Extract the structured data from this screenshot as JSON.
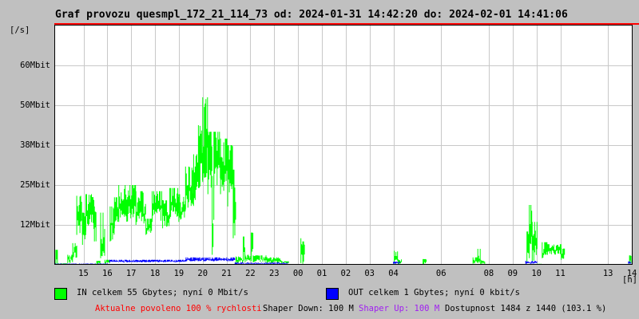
{
  "title": "Graf provozu quesmpl_172_21_114_73 od: 2024-01-31 14:42:20 do: 2024-02-01 14:41:06",
  "colors": {
    "background": "#c0c0c0",
    "plot_background": "#ffffff",
    "grid": "#c8c8c8",
    "frame": "#000000",
    "max_line": "#ff0000",
    "in_series": "#00ff00",
    "out_series": "#0000ff",
    "allowed_text": "#ff0000",
    "shaper_up_text": "#a020f0",
    "text": "#000000"
  },
  "y_axis": {
    "unit_label": "[/s]",
    "ticks": [
      {
        "value": 12,
        "label": "12Mbit"
      },
      {
        "value": 25,
        "label": "25Mbit"
      },
      {
        "value": 38,
        "label": "38Mbit"
      },
      {
        "value": 50,
        "label": "50Mbit"
      },
      {
        "value": 60,
        "label": "60Mbit"
      }
    ]
  },
  "x_axis": {
    "unit_label": "[h]",
    "note": "t is hours since day-1 00:00; 24+ means next day. Labels/gridlines for 05, 07 and 12 h are absent in the source image.",
    "ticks": [
      {
        "t": 15,
        "label": "15",
        "grid": true
      },
      {
        "t": 16,
        "label": "16",
        "grid": true
      },
      {
        "t": 17,
        "label": "17",
        "grid": true
      },
      {
        "t": 18,
        "label": "18",
        "grid": true
      },
      {
        "t": 19,
        "label": "19",
        "grid": true
      },
      {
        "t": 20,
        "label": "20",
        "grid": true
      },
      {
        "t": 21,
        "label": "21",
        "grid": true
      },
      {
        "t": 22,
        "label": "22",
        "grid": true
      },
      {
        "t": 23,
        "label": "23",
        "grid": true
      },
      {
        "t": 24,
        "label": "00",
        "grid": true
      },
      {
        "t": 25,
        "label": "01",
        "grid": true
      },
      {
        "t": 26,
        "label": "02",
        "grid": true
      },
      {
        "t": 27,
        "label": "03",
        "grid": true
      },
      {
        "t": 28,
        "label": "04",
        "grid": true
      },
      {
        "t": 30,
        "label": "06",
        "grid": true
      },
      {
        "t": 32,
        "label": "08",
        "grid": true
      },
      {
        "t": 33,
        "label": "09",
        "grid": true
      },
      {
        "t": 34,
        "label": "10",
        "grid": true
      },
      {
        "t": 35,
        "label": "11",
        "grid": true
      },
      {
        "t": 37,
        "label": "13",
        "grid": true
      },
      {
        "t": 38,
        "label": "14",
        "grid": false
      }
    ]
  },
  "legend": {
    "in_label": "IN celkem 55 Gbytes; nyní 0 Mbit/s",
    "out_label": "OUT celkem 1 Gbytes; nyní 0 kbit/s"
  },
  "footer": {
    "allowed": "Aktualne povoleno 100 % rychlosti",
    "shaper_down": "Shaper Down: 100 M",
    "shaper_up": "Shaper Up: 100 M",
    "availability": "Dostupnost 1484 z 1440 (103.1 %)"
  },
  "chart_data": {
    "type": "area",
    "style": "mrtg min-max spike band",
    "x_unit": "hour of day (15:00 day 1 through 14:00 day 2)",
    "y_unit": "Mbit/s",
    "ylim": [
      0,
      70
    ],
    "y_tick_values": [
      12,
      25,
      38,
      50,
      60
    ],
    "max_reference_line": "top red line = scale maximum",
    "peak_in_mbit": 52,
    "series": [
      {
        "name": "IN",
        "color": "#00ff00",
        "segments_t0_t1_lo_hi": [
          [
            13.8,
            13.84,
            0.1,
            0.5
          ],
          [
            13.84,
            13.92,
            0.3,
            4.5
          ],
          [
            13.92,
            14.34,
            0.05,
            0.4
          ],
          [
            14.34,
            14.55,
            0.5,
            3.0
          ],
          [
            14.55,
            14.72,
            2.0,
            6.5
          ],
          [
            14.72,
            14.96,
            9.0,
            21.5
          ],
          [
            14.96,
            15.1,
            6.0,
            16.0
          ],
          [
            15.1,
            15.46,
            10.0,
            22.0
          ],
          [
            15.46,
            15.56,
            7.0,
            18.0
          ],
          [
            15.56,
            15.72,
            0.2,
            1.2
          ],
          [
            15.72,
            15.9,
            2.0,
            16.0
          ],
          [
            15.9,
            16.12,
            0.3,
            1.5
          ],
          [
            16.12,
            16.3,
            7.0,
            18.0
          ],
          [
            16.3,
            16.48,
            11.0,
            21.0
          ],
          [
            16.48,
            17.2,
            13.0,
            25.0
          ],
          [
            17.2,
            17.62,
            12.0,
            23.0
          ],
          [
            17.62,
            17.88,
            9.0,
            14.0
          ],
          [
            17.88,
            18.32,
            13.0,
            23.0
          ],
          [
            18.32,
            18.62,
            11.0,
            20.0
          ],
          [
            18.62,
            19.0,
            14.0,
            24.0
          ],
          [
            19.0,
            19.28,
            13.0,
            22.0
          ],
          [
            19.28,
            19.62,
            17.0,
            31.0
          ],
          [
            19.62,
            19.82,
            20.0,
            35.0
          ],
          [
            19.82,
            20.0,
            24.0,
            44.0
          ],
          [
            20.0,
            20.22,
            26.0,
            52.0
          ],
          [
            20.22,
            20.4,
            22.0,
            42.0
          ],
          [
            20.4,
            20.47,
            3.0,
            28.0
          ],
          [
            20.47,
            20.75,
            24.0,
            42.0
          ],
          [
            20.75,
            21.05,
            22.0,
            40.0
          ],
          [
            21.05,
            21.28,
            18.0,
            38.0
          ],
          [
            21.28,
            21.4,
            8.0,
            30.0
          ],
          [
            21.4,
            21.7,
            0.5,
            2.5
          ],
          [
            21.7,
            21.78,
            1.0,
            8.5
          ],
          [
            21.78,
            22.04,
            0.8,
            3.0
          ],
          [
            22.04,
            22.12,
            1.0,
            9.7
          ],
          [
            22.12,
            22.7,
            0.8,
            2.8
          ],
          [
            22.7,
            23.3,
            0.5,
            2.2
          ],
          [
            23.3,
            23.62,
            0.3,
            1.2
          ],
          [
            23.62,
            24.12,
            0.05,
            0.25
          ],
          [
            24.12,
            24.2,
            0.5,
            8.0
          ],
          [
            24.2,
            24.3,
            0.3,
            7.0
          ],
          [
            24.3,
            28.04,
            0.03,
            0.15
          ],
          [
            28.04,
            28.2,
            0.3,
            4.2
          ],
          [
            28.2,
            28.36,
            0.2,
            1.6
          ],
          [
            28.36,
            29.24,
            0.03,
            0.15
          ],
          [
            29.24,
            29.4,
            0.2,
            1.7
          ],
          [
            29.4,
            31.34,
            0.03,
            0.15
          ],
          [
            31.34,
            31.54,
            0.3,
            2.2
          ],
          [
            31.54,
            31.66,
            0.5,
            4.8
          ],
          [
            31.66,
            31.84,
            0.2,
            1.5
          ],
          [
            31.84,
            33.6,
            0.03,
            0.15
          ],
          [
            33.6,
            33.7,
            1.0,
            10.0
          ],
          [
            33.7,
            33.82,
            2.0,
            18.5
          ],
          [
            33.82,
            34.03,
            1.0,
            13.0
          ],
          [
            34.03,
            34.24,
            0.05,
            0.3
          ],
          [
            34.24,
            34.46,
            2.0,
            6.8
          ],
          [
            34.46,
            35.04,
            3.0,
            6.2
          ],
          [
            35.04,
            35.18,
            1.5,
            5.0
          ],
          [
            35.18,
            37.9,
            0.02,
            0.1
          ],
          [
            37.9,
            38.02,
            0.3,
            2.8
          ]
        ]
      },
      {
        "name": "OUT",
        "color": "#0000ff",
        "segments_t0_t1_lo_hi": [
          [
            13.8,
            16.1,
            0.05,
            0.35
          ],
          [
            16.1,
            19.3,
            0.7,
            1.5
          ],
          [
            19.3,
            21.36,
            1.0,
            2.2
          ],
          [
            21.36,
            23.6,
            0.2,
            0.7
          ],
          [
            23.6,
            28.0,
            0.03,
            0.15
          ],
          [
            28.0,
            28.3,
            0.3,
            0.9
          ],
          [
            28.3,
            33.55,
            0.03,
            0.15
          ],
          [
            33.55,
            34.05,
            0.3,
            1.2
          ],
          [
            34.05,
            37.86,
            0.03,
            0.12
          ],
          [
            37.86,
            38.02,
            0.3,
            1.0
          ]
        ]
      }
    ]
  }
}
